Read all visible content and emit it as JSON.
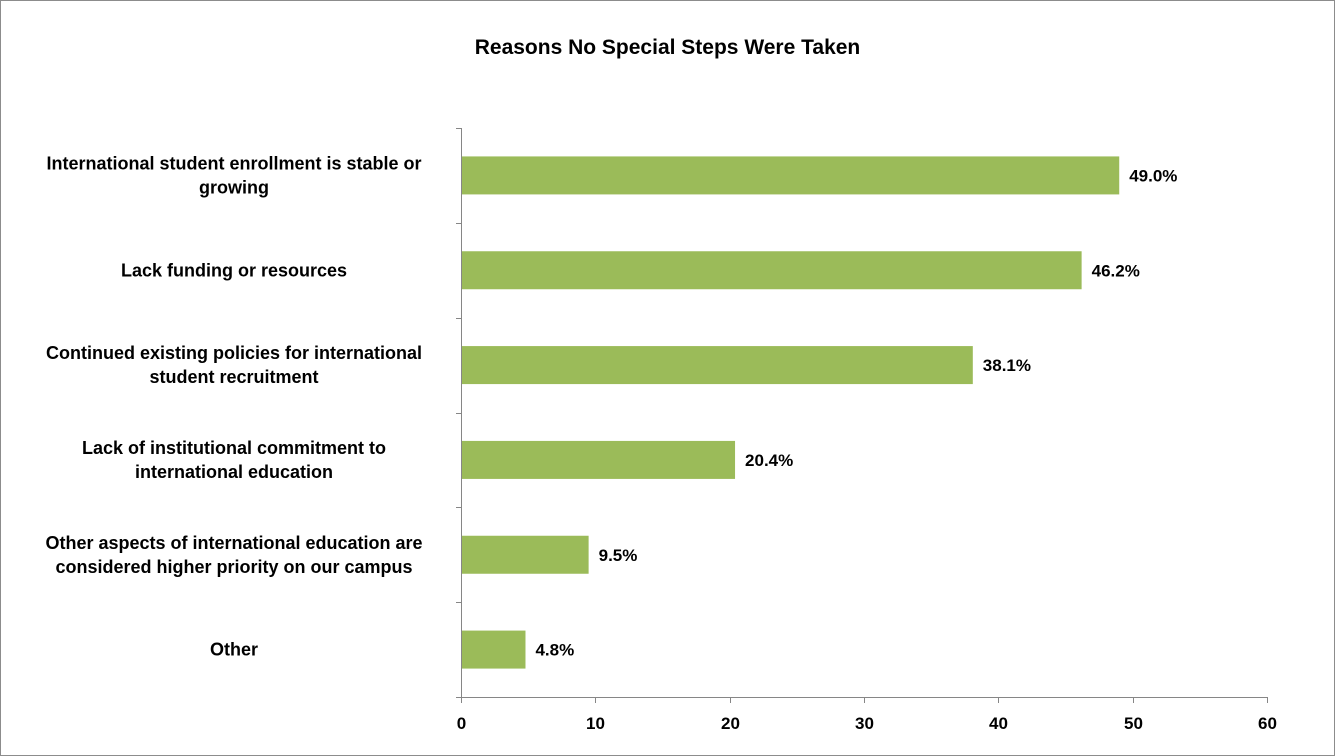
{
  "chart_data": {
    "type": "bar",
    "orientation": "horizontal",
    "title": "Reasons No Special Steps Were Taken",
    "categories": [
      [
        "International student enrollment is stable or",
        "growing"
      ],
      [
        "Lack funding or resources"
      ],
      [
        "Continued existing policies for international",
        "student recruitment"
      ],
      [
        "Lack of institutional commitment to",
        "international education"
      ],
      [
        "Other aspects of international education are",
        "considered higher priority on our campus"
      ],
      [
        "Other"
      ]
    ],
    "values": [
      49.0,
      46.2,
      38.1,
      20.4,
      9.5,
      4.8
    ],
    "value_labels": [
      "49.0%",
      "46.2%",
      "38.1%",
      "20.4%",
      "9.5%",
      "4.8%"
    ],
    "xlim": [
      0,
      60
    ],
    "xticks": [
      "0",
      "10",
      "20",
      "30",
      "40",
      "50",
      "60"
    ],
    "grid": false,
    "legend": "none",
    "bar_color": "#9bbb59"
  }
}
